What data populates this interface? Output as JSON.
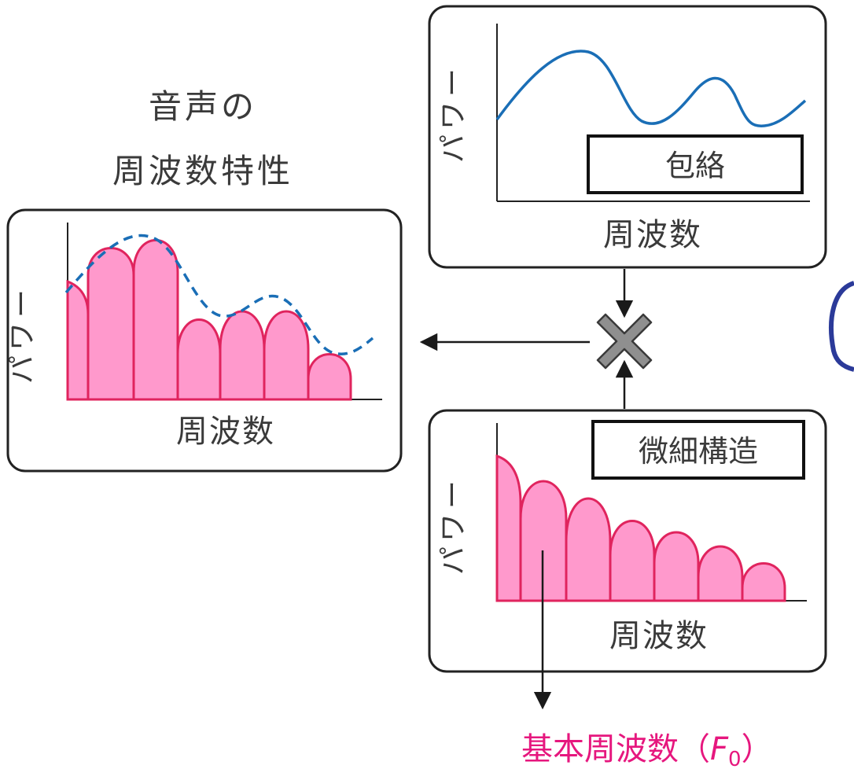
{
  "title": {
    "line1": "音声の",
    "line2": "周波数特性"
  },
  "combined_panel": {
    "y_label": "パワー",
    "x_label": "周波数"
  },
  "envelope_panel": {
    "y_label": "パワー",
    "x_label": "周波数",
    "box_label": "包絡"
  },
  "fine_panel": {
    "y_label": "パワー",
    "x_label": "周波数",
    "box_label": "微細構造"
  },
  "operator": "×",
  "output": {
    "label": "基本周波数（",
    "symbol": "F",
    "subscript": "0",
    "suffix": "）"
  },
  "colors": {
    "envelope": "#1a6eb6",
    "harmonic_fill": "#ff99cc",
    "harmonic_stroke": "#e0245e",
    "f0_text": "#e6177e",
    "cross_fill": "#8f8f8f"
  }
}
